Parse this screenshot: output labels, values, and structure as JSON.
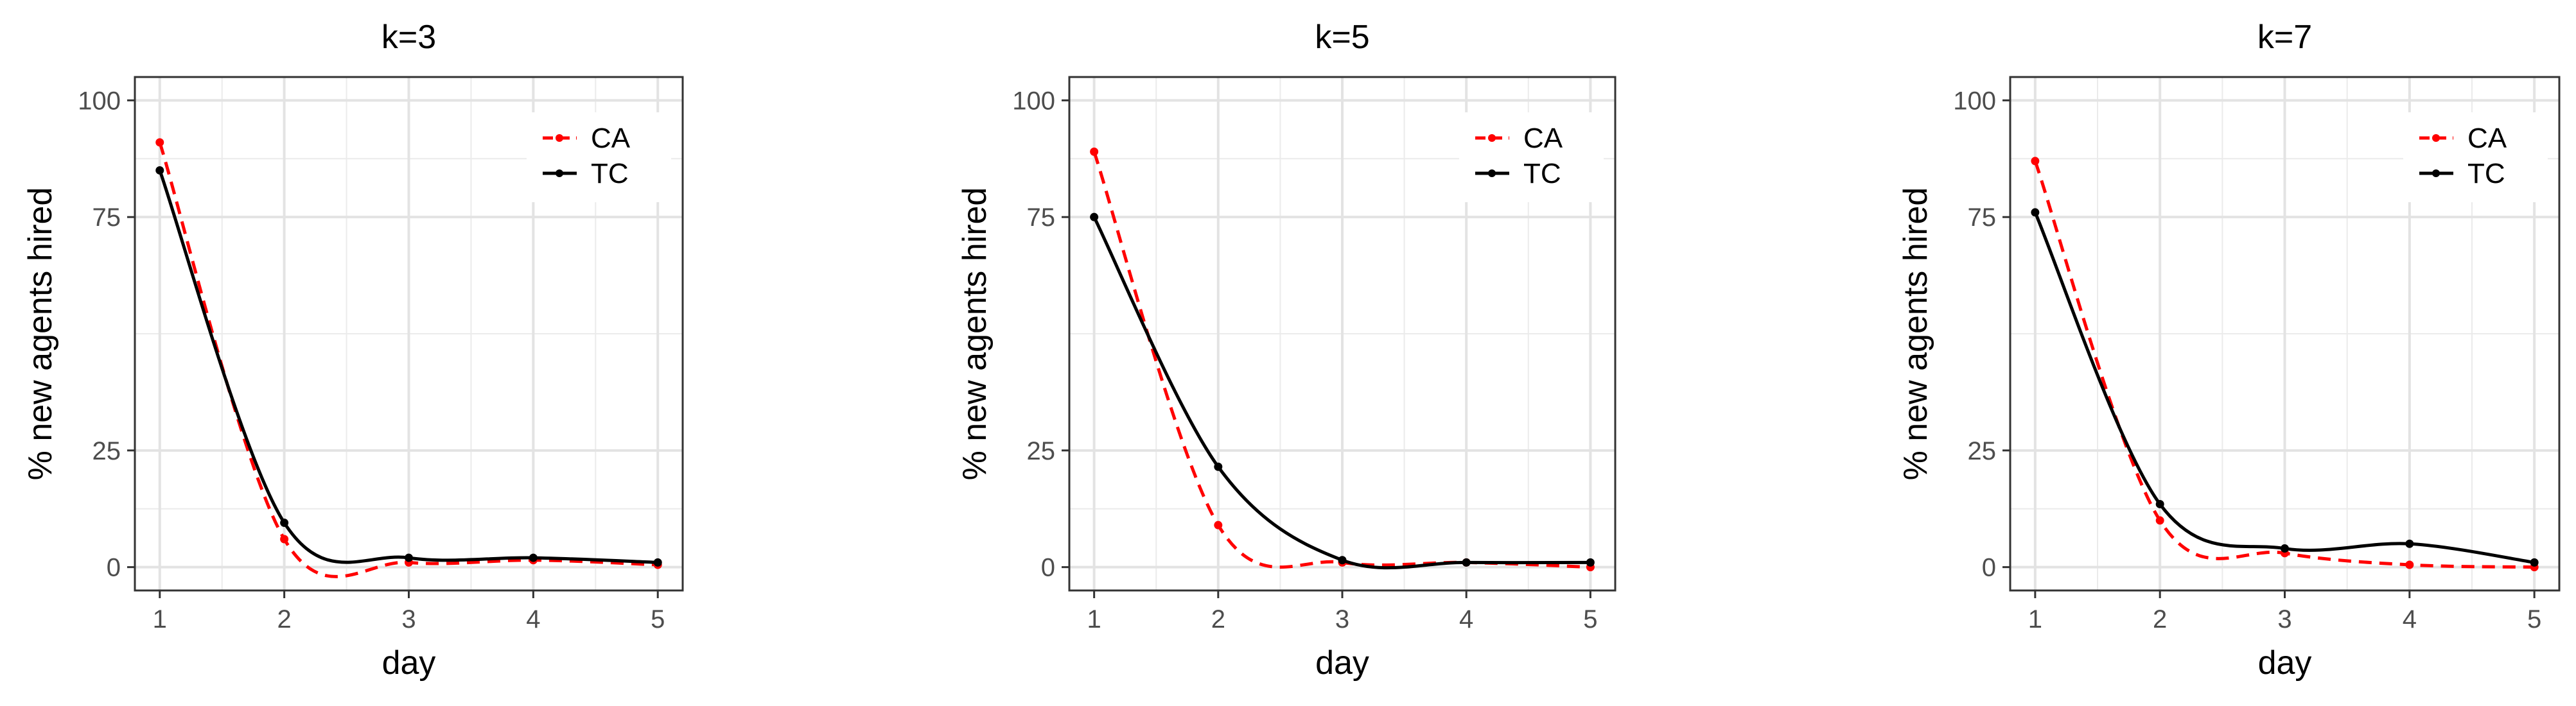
{
  "chart_data": [
    {
      "type": "line",
      "title": "k=3",
      "xlabel": "day",
      "ylabel": "% new agents hired",
      "x": [
        1,
        2,
        3,
        4,
        5
      ],
      "xticks": [
        "1",
        "2",
        "3",
        "4",
        "5"
      ],
      "yticks": [
        "0",
        "25",
        "75",
        "100"
      ],
      "ytick_values": [
        0,
        25,
        75,
        100
      ],
      "xlim": [
        0.8,
        5.2
      ],
      "ylim": [
        -5,
        105
      ],
      "grid": true,
      "legend": "top-right",
      "series": [
        {
          "name": "CA",
          "values": [
            91,
            6,
            1,
            1.5,
            0.5
          ],
          "color": "#ff0000",
          "dash": "dashed"
        },
        {
          "name": "TC",
          "values": [
            85,
            9.5,
            2,
            2,
            1
          ],
          "color": "#000000",
          "dash": "solid"
        }
      ]
    },
    {
      "type": "line",
      "title": "k=5",
      "xlabel": "day",
      "ylabel": "% new agents hired",
      "x": [
        1,
        2,
        3,
        4,
        5
      ],
      "xticks": [
        "1",
        "2",
        "3",
        "4",
        "5"
      ],
      "yticks": [
        "0",
        "25",
        "75",
        "100"
      ],
      "ytick_values": [
        0,
        25,
        75,
        100
      ],
      "xlim": [
        0.8,
        5.2
      ],
      "ylim": [
        -5,
        105
      ],
      "grid": true,
      "legend": "top-right",
      "series": [
        {
          "name": "CA",
          "values": [
            89,
            9,
            1,
            1,
            0
          ],
          "color": "#ff0000",
          "dash": "dashed"
        },
        {
          "name": "TC",
          "values": [
            75,
            21.5,
            1.5,
            1,
            1
          ],
          "color": "#000000",
          "dash": "solid"
        }
      ]
    },
    {
      "type": "line",
      "title": "k=7",
      "xlabel": "day",
      "ylabel": "% new agents hired",
      "x": [
        1,
        2,
        3,
        4,
        5
      ],
      "xticks": [
        "1",
        "2",
        "3",
        "4",
        "5"
      ],
      "yticks": [
        "0",
        "25",
        "75",
        "100"
      ],
      "ytick_values": [
        0,
        25,
        75,
        100
      ],
      "xlim": [
        0.8,
        5.2
      ],
      "ylim": [
        -5,
        105
      ],
      "grid": true,
      "legend": "top-right",
      "series": [
        {
          "name": "CA",
          "values": [
            87,
            10,
            3,
            0.5,
            0
          ],
          "color": "#ff0000",
          "dash": "dashed"
        },
        {
          "name": "TC",
          "values": [
            76,
            13.5,
            4,
            5,
            1
          ],
          "color": "#000000",
          "dash": "solid"
        }
      ]
    }
  ]
}
